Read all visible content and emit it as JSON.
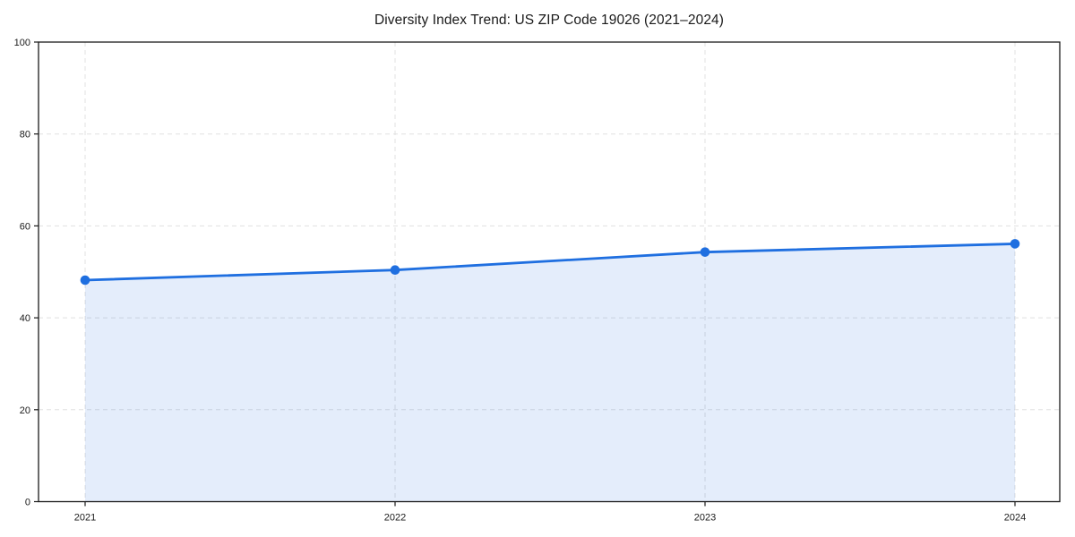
{
  "figure": {
    "title": "Diversity Index Trend: US ZIP Code 19026 (2021–2024)"
  },
  "chart_data": {
    "type": "line",
    "title": "Diversity Index Trend: US ZIP Code 19026 (2021–2024)",
    "x": [
      "2021",
      "2022",
      "2023",
      "2024"
    ],
    "series": [
      {
        "name": "Diversity Index",
        "values": [
          48.2,
          50.4,
          54.3,
          56.1
        ]
      }
    ],
    "xlabel": "",
    "ylabel": "",
    "ylim": [
      0,
      100
    ],
    "yticks": [
      0,
      20,
      40,
      60,
      80,
      100
    ],
    "grid": "dashed",
    "legend": "none",
    "area_fill": true,
    "markers": true,
    "colors": {
      "line": "#1f6fe0",
      "marker": "#1f6fe0",
      "fill": "rgba(31,111,224,0.12)",
      "gridline": "#e0e0e0",
      "spine": "#1a1a1a",
      "tick_text": "#1a1a1a",
      "background": "#ffffff"
    }
  }
}
